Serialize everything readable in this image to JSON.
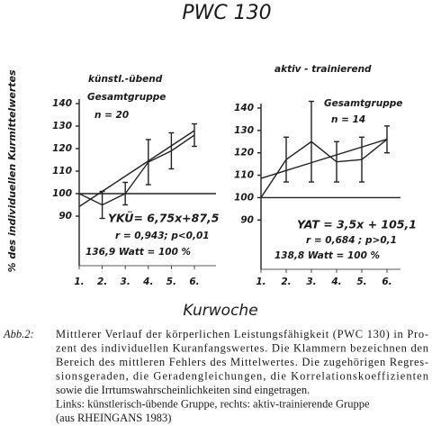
{
  "figure": {
    "title": "PWC 130",
    "x_label": "Kurwoche",
    "y_label": "% des individuellen Kurmittelwertes"
  },
  "chart_data": [
    {
      "type": "line",
      "title": "künstl.-übend",
      "categories": [
        "1.",
        "2.",
        "3.",
        "4.",
        "5.",
        "6."
      ],
      "series": [
        {
          "color": "#222222",
          "values": [
            100,
            95,
            100,
            114,
            119,
            126
          ],
          "errors": [
            null,
            6,
            5,
            10,
            8,
            5
          ]
        },
        {
          "color": "#222222",
          "values": [
            94.25,
            101,
            107.75,
            114.5,
            121.25,
            128
          ]
        }
      ],
      "reference_line": 100,
      "ylim": [
        68,
        142
      ],
      "yticks": [
        90,
        100,
        110,
        120,
        130,
        140
      ],
      "annotations": [
        "Gesamtgruppe",
        "n = 20",
        "YKÜ= 6,75x+87,5",
        "r = 0,943; p<0,01",
        "136,9  Watt  =  100 %"
      ]
    },
    {
      "type": "line",
      "title": "aktiv - trainierend",
      "categories": [
        "1.",
        "2.",
        "3.",
        "4.",
        "5.",
        "6."
      ],
      "series": [
        {
          "color": "#222222",
          "values": [
            100,
            117,
            125,
            116,
            117,
            126
          ],
          "errors": [
            null,
            10,
            18,
            9,
            10,
            6
          ]
        },
        {
          "color": "#222222",
          "values": [
            108.6,
            112.1,
            115.6,
            119.1,
            122.6,
            126.1
          ]
        }
      ],
      "reference_line": 100,
      "ylim": [
        68,
        142
      ],
      "yticks": [
        90,
        100,
        110,
        120,
        130,
        140
      ],
      "annotations": [
        "Gesamtgruppe",
        "n = 14",
        "YAT = 3,5x + 105,1",
        "r = 0,684 ; p>0,1",
        "138,8  Watt  =  100 %"
      ]
    }
  ],
  "caption": {
    "label": "Abb.2:",
    "lines": [
      "Mittlerer Verlauf der körperlichen Leistungsfähigkeit (PWC 130) in Pro-",
      "zent des individuellen Kuranfangswertes. Die Klammern bezeichnen den",
      "Bereich des mittleren Fehlers des Mittelwertes. Die zugehörigen Regres-",
      "sionsgeraden, die Geradengleichungen, die Korrelationskoeffizienten",
      "sowie die Irrtumswahrscheinlichkeiten sind eingetragen.",
      "Links: künstlerisch-übende Gruppe, rechts: aktiv-trainierende Gruppe",
      "(aus RHEINGANS 1983)"
    ]
  }
}
